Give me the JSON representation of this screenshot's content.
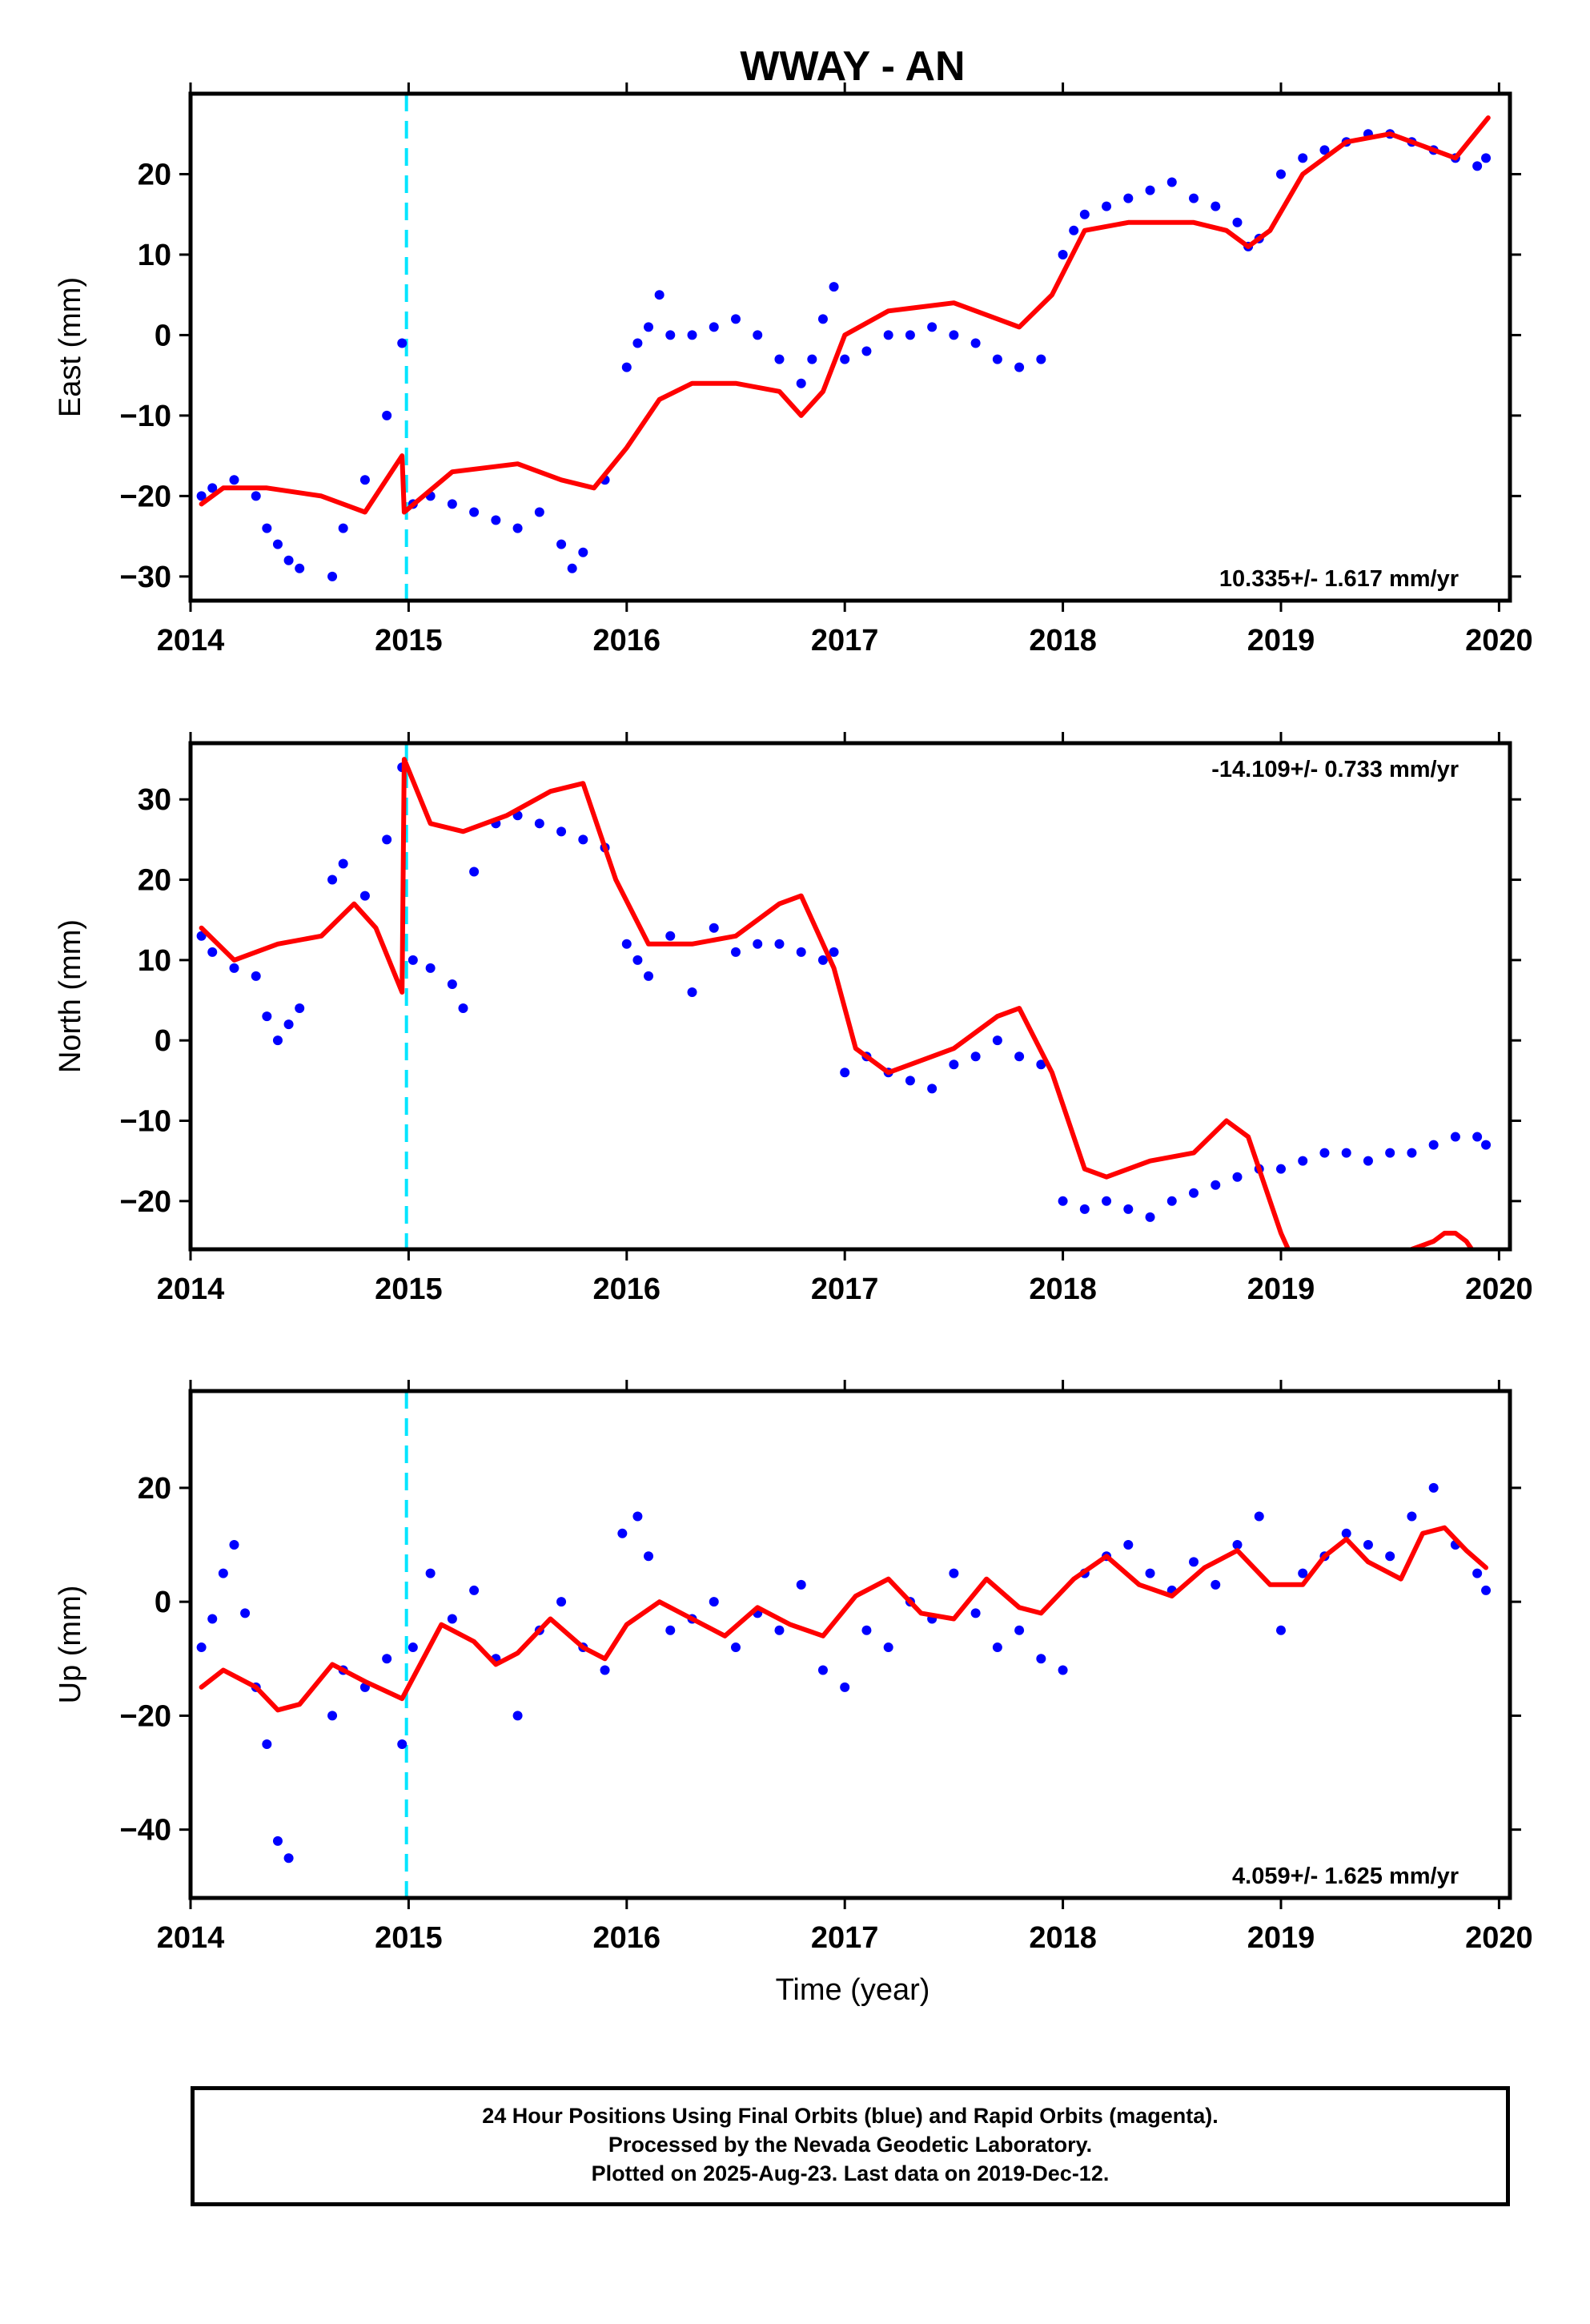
{
  "chart_data": {
    "type": "scatter",
    "title": "WWAY - AN",
    "xlabel": "Time (year)",
    "xlim": [
      2014.0,
      2020.05
    ],
    "x_ticks": [
      2014,
      2015,
      2016,
      2017,
      2018,
      2019,
      2020
    ],
    "x_tick_labels": [
      "2014",
      "2015",
      "2016",
      "2017",
      "2018",
      "2019",
      "2020"
    ],
    "event_marker_x": 2014.99,
    "colors": {
      "data": "#0000ff",
      "model": "#ff0000",
      "event": "#00e5ff",
      "frame": "#000000"
    },
    "panels": [
      {
        "id": "east",
        "ylabel": "East (mm)",
        "ylim": [
          -33,
          30
        ],
        "y_ticks": [
          -30,
          -20,
          -10,
          0,
          10,
          20
        ],
        "y_tick_labels": [
          "-30",
          "-20",
          "-10",
          "0",
          "10",
          "20"
        ],
        "rate_label": "10.335+/- 1.617 mm/yr",
        "rate_position": "bottom-right",
        "series": [
          {
            "kind": "scatter",
            "x": [
              2014.05,
              2014.1,
              2014.2,
              2014.3,
              2014.35,
              2014.4,
              2014.45,
              2014.5,
              2014.65,
              2014.7,
              2014.8,
              2014.9,
              2014.97,
              2015.02,
              2015.1,
              2015.2,
              2015.3,
              2015.4,
              2015.5,
              2015.6,
              2015.7,
              2015.75,
              2015.8,
              2015.9,
              2016.0,
              2016.05,
              2016.1,
              2016.15,
              2016.2,
              2016.3,
              2016.4,
              2016.5,
              2016.6,
              2016.7,
              2016.8,
              2016.85,
              2016.9,
              2016.95,
              2017.0,
              2017.1,
              2017.2,
              2017.3,
              2017.4,
              2017.5,
              2017.6,
              2017.7,
              2017.8,
              2017.9,
              2018.0,
              2018.05,
              2018.1,
              2018.2,
              2018.3,
              2018.4,
              2018.5,
              2018.6,
              2018.7,
              2018.8,
              2018.85,
              2018.9,
              2019.0,
              2019.1,
              2019.2,
              2019.3,
              2019.4,
              2019.5,
              2019.6,
              2019.7,
              2019.8,
              2019.9,
              2019.94
            ],
            "y": [
              -20,
              -19,
              -18,
              -20,
              -24,
              -26,
              -28,
              -29,
              -30,
              -24,
              -18,
              -10,
              -1,
              -21,
              -20,
              -21,
              -22,
              -23,
              -24,
              -22,
              -26,
              -29,
              -27,
              -18,
              -4,
              -1,
              1,
              5,
              0,
              0,
              1,
              2,
              0,
              -3,
              -6,
              -3,
              2,
              6,
              -3,
              -2,
              0,
              0,
              1,
              0,
              -1,
              -3,
              -4,
              -3,
              10,
              13,
              15,
              16,
              17,
              18,
              19,
              17,
              16,
              14,
              11,
              12,
              20,
              22,
              23,
              24,
              25,
              25,
              24,
              23,
              22,
              21,
              22
            ]
          },
          {
            "kind": "line",
            "x": [
              2014.05,
              2014.15,
              2014.35,
              2014.6,
              2014.8,
              2014.97,
              2014.98,
              2015.2,
              2015.5,
              2015.7,
              2015.85,
              2016.0,
              2016.15,
              2016.3,
              2016.5,
              2016.7,
              2016.8,
              2016.9,
              2017.0,
              2017.2,
              2017.5,
              2017.7,
              2017.8,
              2017.95,
              2018.1,
              2018.3,
              2018.6,
              2018.75,
              2018.85,
              2018.95,
              2019.1,
              2019.3,
              2019.5,
              2019.7,
              2019.8,
              2019.95
            ],
            "y": [
              -21,
              -19,
              -19,
              -20,
              -22,
              -15,
              -22,
              -17,
              -16,
              -18,
              -19,
              -14,
              -8,
              -6,
              -6,
              -7,
              -10,
              -7,
              0,
              3,
              4,
              2,
              1,
              5,
              13,
              14,
              14,
              13,
              11,
              13,
              20,
              24,
              25,
              23,
              22,
              27
            ]
          }
        ]
      },
      {
        "id": "north",
        "ylabel": "North (mm)",
        "ylim": [
          -26,
          37
        ],
        "y_ticks": [
          -20,
          -10,
          0,
          10,
          20,
          30
        ],
        "y_tick_labels": [
          "-20",
          "-10",
          "0",
          "10",
          "20",
          "30"
        ],
        "rate_label": "-14.109+/- 0.733 mm/yr",
        "rate_position": "top-right",
        "series": [
          {
            "kind": "scatter",
            "x": [
              2014.05,
              2014.1,
              2014.2,
              2014.3,
              2014.35,
              2014.4,
              2014.45,
              2014.5,
              2014.65,
              2014.7,
              2014.8,
              2014.9,
              2014.97,
              2015.02,
              2015.1,
              2015.2,
              2015.25,
              2015.3,
              2015.4,
              2015.5,
              2015.6,
              2015.7,
              2015.8,
              2015.9,
              2016.0,
              2016.05,
              2016.1,
              2016.2,
              2016.3,
              2016.4,
              2016.5,
              2016.6,
              2016.7,
              2016.8,
              2016.9,
              2016.95,
              2017.0,
              2017.1,
              2017.2,
              2017.3,
              2017.4,
              2017.5,
              2017.6,
              2017.7,
              2017.8,
              2017.9,
              2018.0,
              2018.1,
              2018.2,
              2018.3,
              2018.4,
              2018.5,
              2018.6,
              2018.7,
              2018.8,
              2018.9,
              2019.0,
              2019.1,
              2019.2,
              2019.3,
              2019.4,
              2019.5,
              2019.6,
              2019.7,
              2019.8,
              2019.9,
              2019.94
            ],
            "y": [
              13,
              11,
              9,
              8,
              3,
              0,
              2,
              4,
              20,
              22,
              18,
              25,
              34,
              10,
              9,
              7,
              4,
              21,
              27,
              28,
              27,
              26,
              25,
              24,
              12,
              10,
              8,
              13,
              6,
              14,
              11,
              12,
              12,
              11,
              10,
              11,
              -4,
              -2,
              -4,
              -5,
              -6,
              -3,
              -2,
              0,
              -2,
              -3,
              -20,
              -21,
              -20,
              -21,
              -22,
              -20,
              -19,
              -18,
              -17,
              -16,
              -16,
              -15,
              -14,
              -14,
              -15,
              -14,
              -14,
              -13,
              -12,
              -12,
              -13
            ]
          },
          {
            "kind": "line",
            "x": [
              2014.05,
              2014.2,
              2014.4,
              2014.6,
              2014.75,
              2014.85,
              2014.97,
              2014.98,
              2015.1,
              2015.25,
              2015.45,
              2015.65,
              2015.8,
              2015.95,
              2016.1,
              2016.3,
              2016.5,
              2016.7,
              2016.8,
              2016.95,
              2017.05,
              2017.2,
              2017.5,
              2017.7,
              2017.8,
              2017.95,
              2018.1,
              2018.2,
              2018.4,
              2018.6,
              2018.75,
              2018.85,
              2019.0,
              2019.05
            ],
            "y": [
              14,
              10,
              12,
              13,
              17,
              14,
              6,
              35,
              27,
              26,
              28,
              31,
              32,
              20,
              12,
              12,
              13,
              17,
              18,
              9,
              -1,
              -4,
              -1,
              3,
              4,
              -4,
              -16,
              -17,
              -15,
              -14,
              -10,
              -12,
              -24,
              -27
            ]
          },
          {
            "kind": "line",
            "x": [
              2019.6,
              2019.7,
              2019.75,
              2019.8,
              2019.85,
              2019.9
            ],
            "y": [
              -26,
              -25,
              -24,
              -24,
              -25,
              -27
            ]
          }
        ]
      },
      {
        "id": "up",
        "ylabel": "Up (mm)",
        "ylim": [
          -52,
          37
        ],
        "y_ticks": [
          -40,
          -20,
          0,
          20
        ],
        "y_tick_labels": [
          "-40",
          "-20",
          "0",
          "20"
        ],
        "rate_label": "4.059+/- 1.625 mm/yr",
        "rate_position": "bottom-right",
        "series": [
          {
            "kind": "scatter",
            "x": [
              2014.05,
              2014.1,
              2014.15,
              2014.2,
              2014.25,
              2014.3,
              2014.35,
              2014.4,
              2014.45,
              2014.65,
              2014.7,
              2014.8,
              2014.9,
              2014.97,
              2015.02,
              2015.1,
              2015.2,
              2015.3,
              2015.4,
              2015.5,
              2015.6,
              2015.7,
              2015.8,
              2015.9,
              2015.98,
              2016.05,
              2016.1,
              2016.2,
              2016.3,
              2016.4,
              2016.5,
              2016.6,
              2016.7,
              2016.8,
              2016.9,
              2017.0,
              2017.1,
              2017.2,
              2017.3,
              2017.4,
              2017.5,
              2017.6,
              2017.7,
              2017.8,
              2017.9,
              2018.0,
              2018.1,
              2018.2,
              2018.3,
              2018.4,
              2018.5,
              2018.6,
              2018.7,
              2018.8,
              2018.9,
              2019.0,
              2019.1,
              2019.2,
              2019.3,
              2019.4,
              2019.5,
              2019.6,
              2019.7,
              2019.8,
              2019.9,
              2019.94
            ],
            "y": [
              -8,
              -3,
              5,
              10,
              -2,
              -15,
              -25,
              -42,
              -45,
              -20,
              -12,
              -15,
              -10,
              -25,
              -8,
              5,
              -3,
              2,
              -10,
              -20,
              -5,
              0,
              -8,
              -12,
              12,
              15,
              8,
              -5,
              -3,
              0,
              -8,
              -2,
              -5,
              3,
              -12,
              -15,
              -5,
              -8,
              0,
              -3,
              5,
              -2,
              -8,
              -5,
              -10,
              -12,
              5,
              8,
              10,
              5,
              2,
              7,
              3,
              10,
              15,
              -5,
              5,
              8,
              12,
              10,
              8,
              15,
              20,
              10,
              5,
              2
            ]
          },
          {
            "kind": "line",
            "x": [
              2014.05,
              2014.15,
              2014.3,
              2014.4,
              2014.5,
              2014.65,
              2014.8,
              2014.97,
              2015.15,
              2015.3,
              2015.4,
              2015.5,
              2015.65,
              2015.8,
              2015.9,
              2016.0,
              2016.15,
              2016.3,
              2016.45,
              2016.6,
              2016.75,
              2016.9,
              2017.05,
              2017.2,
              2017.35,
              2017.5,
              2017.65,
              2017.8,
              2017.9,
              2018.05,
              2018.2,
              2018.35,
              2018.5,
              2018.65,
              2018.8,
              2018.95,
              2019.1,
              2019.2,
              2019.3,
              2019.4,
              2019.55,
              2019.65,
              2019.75,
              2019.85,
              2019.94
            ],
            "y": [
              -15,
              -12,
              -15,
              -19,
              -18,
              -11,
              -14,
              -17,
              -4,
              -7,
              -11,
              -9,
              -3,
              -8,
              -10,
              -4,
              0,
              -3,
              -6,
              -1,
              -4,
              -6,
              1,
              4,
              -2,
              -3,
              4,
              -1,
              -2,
              4,
              8,
              3,
              1,
              6,
              9,
              3,
              3,
              8,
              11,
              7,
              4,
              12,
              13,
              9,
              6
            ]
          }
        ]
      }
    ]
  },
  "footer": {
    "line1": "24 Hour Positions Using Final Orbits (blue) and Rapid Orbits (magenta).",
    "line2": "Processed by the Nevada Geodetic Laboratory.",
    "line3": "Plotted on 2025-Aug-23. Last data on 2019-Dec-12."
  }
}
